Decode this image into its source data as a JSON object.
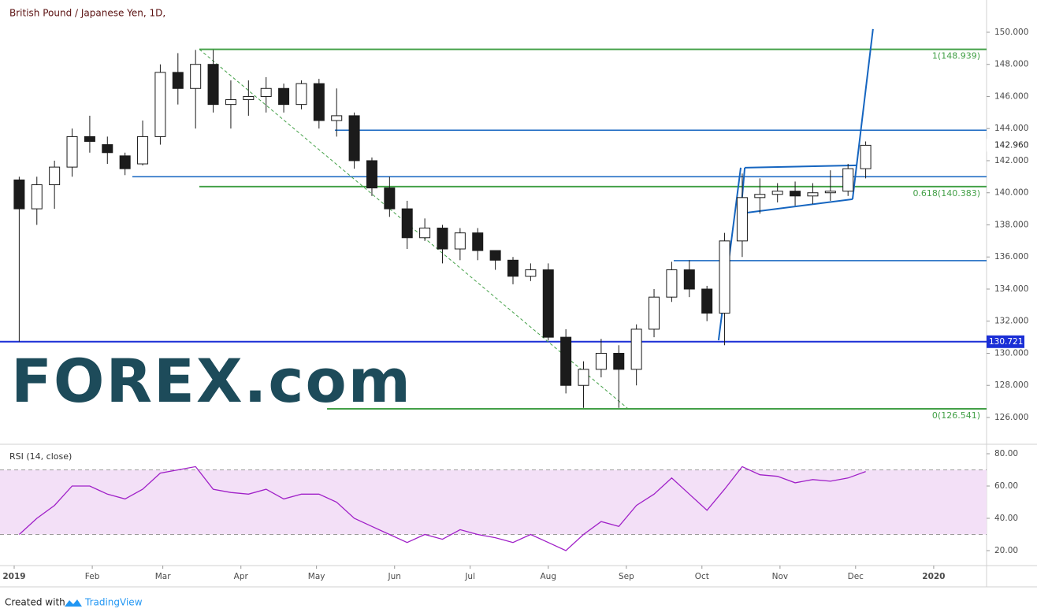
{
  "chart_data": {
    "type": "candlestick",
    "title": "British Pound / Japanese Yen, 1D,",
    "x": [
      2,
      9,
      16,
      23,
      30,
      37,
      44,
      51,
      58,
      65,
      72,
      79,
      86,
      93,
      100,
      107,
      114,
      121,
      128,
      135,
      142,
      149,
      156,
      163,
      170,
      177,
      184,
      191,
      198,
      205,
      212,
      219,
      226,
      233,
      240,
      247,
      254,
      261,
      268,
      275,
      282,
      289,
      296,
      303,
      310,
      317,
      324,
      331,
      338
    ],
    "open": [
      140.8,
      139,
      140.5,
      141.6,
      143.5,
      143,
      142.3,
      141.8,
      143.5,
      147.5,
      146.5,
      148,
      145.5,
      145.8,
      146,
      146.5,
      145.5,
      146.8,
      144.5,
      144.8,
      142,
      140.3,
      139,
      137.2,
      137.8,
      136.5,
      137.5,
      136.4,
      135.8,
      134.8,
      135.2,
      131,
      128,
      129,
      130,
      129,
      131.5,
      133.5,
      135.2,
      134,
      132.5,
      137,
      139.7,
      139.9,
      140.1,
      139.8,
      140,
      140.1,
      141.5
    ],
    "high": [
      141,
      141,
      142,
      144,
      144.8,
      143.5,
      142.5,
      144.5,
      148,
      148.7,
      148.9,
      148.9,
      147,
      147,
      147.2,
      146.8,
      147,
      147.1,
      146.5,
      145,
      142.2,
      141,
      139.5,
      138.4,
      138,
      137.8,
      137.8,
      136.2,
      136,
      135.6,
      135.6,
      131.5,
      129.5,
      130.9,
      130.5,
      131.8,
      134,
      135.7,
      135.8,
      134.2,
      137.5,
      141.2,
      140.9,
      140.6,
      140.7,
      140.6,
      141.4,
      141.8,
      143.2
    ],
    "low": [
      130.721,
      138,
      139,
      141,
      142.5,
      141.8,
      141.1,
      141.7,
      143,
      145.5,
      144,
      145,
      144,
      144.8,
      145,
      145,
      145.2,
      144,
      143.5,
      141.5,
      139.8,
      138.5,
      136.5,
      137,
      135.6,
      135.8,
      135.8,
      135.2,
      134.3,
      134.5,
      130.8,
      127.5,
      126.6,
      128.5,
      126.6,
      128,
      131,
      133.2,
      133.5,
      132,
      130.5,
      136,
      138.7,
      139.4,
      139.2,
      139.3,
      139.5,
      139.8,
      140.9
    ],
    "close": [
      139,
      140.5,
      141.6,
      143.5,
      143.2,
      142.5,
      141.5,
      143.5,
      147.5,
      146.5,
      148,
      145.5,
      145.8,
      146,
      146.5,
      145.5,
      146.8,
      144.5,
      144.8,
      142,
      140.3,
      139,
      137.2,
      137.8,
      136.5,
      137.5,
      136.4,
      135.8,
      134.8,
      135.2,
      131,
      128,
      129,
      130,
      129,
      131.5,
      133.5,
      135.2,
      134,
      132.5,
      137,
      139.7,
      139.9,
      140.1,
      139.8,
      140,
      140.1,
      141.5,
      142.96
    ],
    "up_color": "#ffffff",
    "down_color": "#1b1b1b",
    "wick_color": "#1b1b1b",
    "xlim": [
      -5.63,
      385.99
    ],
    "xticks": [
      {
        "value": 0,
        "label": "2019"
      },
      {
        "value": 31,
        "label": "Feb"
      },
      {
        "value": 59,
        "label": "Mar"
      },
      {
        "value": 90,
        "label": "Apr"
      },
      {
        "value": 120,
        "label": "May"
      },
      {
        "value": 151,
        "label": "Jun"
      },
      {
        "value": 181,
        "label": "Jul"
      },
      {
        "value": 212,
        "label": "Aug"
      },
      {
        "value": 243,
        "label": "Sep"
      },
      {
        "value": 273,
        "label": "Oct"
      },
      {
        "value": 304,
        "label": "Nov"
      },
      {
        "value": 334,
        "label": "Dec"
      },
      {
        "value": 365,
        "label": "2020"
      }
    ],
    "ylim": [
      124.38,
      152.01
    ],
    "yticks": [
      {
        "value": 126,
        "label": "126.000"
      },
      {
        "value": 128,
        "label": "128.000"
      },
      {
        "value": 130,
        "label": "130.000"
      },
      {
        "value": 132,
        "label": "132.000"
      },
      {
        "value": 134,
        "label": "134.000"
      },
      {
        "value": 136,
        "label": "136.000"
      },
      {
        "value": 138,
        "label": "138.000"
      },
      {
        "value": 140,
        "label": "140.000"
      },
      {
        "value": 142,
        "label": "142.000"
      },
      {
        "value": 144,
        "label": "144.000"
      },
      {
        "value": 146,
        "label": "146.000"
      },
      {
        "value": 148,
        "label": "148.000"
      },
      {
        "value": 150,
        "label": "150.000"
      }
    ],
    "last_price": {
      "value": 142.96,
      "label": "142.960"
    },
    "hlines": [
      {
        "value": 130.721,
        "label": "130.721",
        "start": -5.63,
        "color": "#1b2fd6",
        "width": 2
      },
      {
        "value": 141.0,
        "start": 46.9,
        "color": "#1565c0",
        "width": 1.5
      },
      {
        "value": 143.9,
        "start": 127.3,
        "color": "#1565c0",
        "width": 1.5
      },
      {
        "value": 135.77,
        "start": 261.8,
        "color": "#1565c0",
        "width": 1.5
      }
    ],
    "levels": [
      {
        "value": 148.939,
        "label": "1(148.939)",
        "start": 73.5
      },
      {
        "value": 140.383,
        "label": "0.618(140.383)",
        "start": 73.5
      },
      {
        "value": 126.541,
        "label": "0(126.541)",
        "start": 124.2
      }
    ],
    "level_color": "#43a047",
    "trendlines": [
      {
        "x": [
          73.5,
          243.7
        ],
        "y": [
          148.939,
          126.541
        ],
        "color": "#43a047",
        "dashed": true
      },
      {
        "x": [
          279.6,
          288.4
        ],
        "y": [
          130.81,
          141.56
        ],
        "color": "#1565c0",
        "dashed": false
      },
      {
        "x": [
          290.0,
          334.7
        ],
        "y": [
          141.56,
          141.71
        ],
        "color": "#1565c0",
        "dashed": false
      },
      {
        "x": [
          288.4,
          332.8
        ],
        "y": [
          138.71,
          139.6
        ],
        "color": "#1565c0",
        "dashed": false
      },
      {
        "x": [
          290.0,
          288.4
        ],
        "y": [
          141.56,
          138.71
        ],
        "color": "#1565c0",
        "dashed": false
      },
      {
        "x": [
          332.8,
          340.9
        ],
        "y": [
          139.6,
          150.2
        ],
        "color": "#1565c0",
        "dashed": false
      }
    ],
    "watermark": "FOREX.com",
    "footer": [
      "Created with",
      "TradingView"
    ],
    "indicator": {
      "type": "line",
      "title": "RSI (14, close)",
      "color": "#a020c8",
      "values": [
        30,
        40,
        48,
        60,
        60,
        55,
        52,
        58,
        68,
        70,
        72,
        58,
        56,
        55,
        58,
        52,
        55,
        55,
        50,
        40,
        35,
        30,
        25,
        30,
        27,
        33,
        30,
        28,
        25,
        30,
        25,
        20,
        30,
        38,
        35,
        48,
        55,
        65,
        55,
        45,
        58,
        72,
        67,
        66,
        62,
        64,
        63,
        65,
        69
      ],
      "band": [
        30,
        70
      ],
      "ylim": [
        10.73,
        85.37
      ],
      "yticks": [
        {
          "value": 20,
          "label": "20.00"
        },
        {
          "value": 40,
          "label": "40.00"
        },
        {
          "value": 60,
          "label": "60.00"
        },
        {
          "value": 80,
          "label": "80.00"
        }
      ]
    }
  }
}
